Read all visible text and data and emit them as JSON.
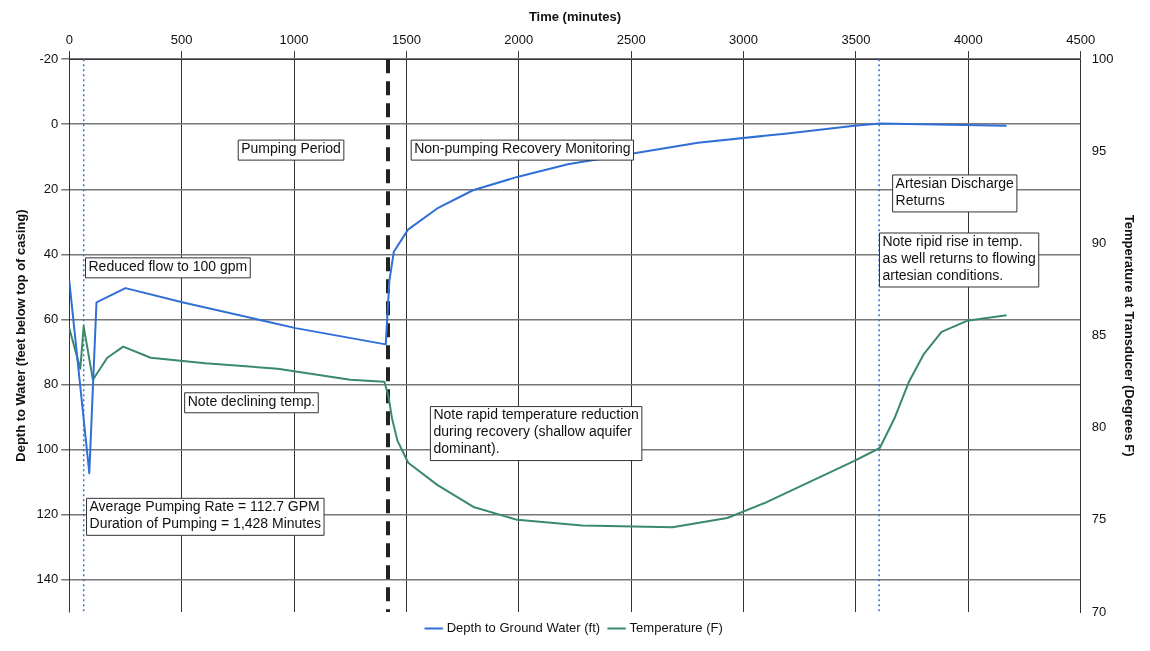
{
  "chart_data": {
    "type": "line",
    "xlabel": "Time (minutes)",
    "ylabel": "Depth to Water (feet below top of casing)",
    "y2label": "Temperature at Transducer (Degrees F)",
    "xlim": [
      0,
      4500
    ],
    "xticks": [
      0,
      500,
      1000,
      1500,
      2000,
      2500,
      3000,
      3500,
      4000,
      4500
    ],
    "ylim": [
      150,
      -20
    ],
    "yticks": [
      -20,
      0,
      20,
      40,
      60,
      80,
      100,
      120,
      140
    ],
    "y2lim": [
      70,
      100
    ],
    "y2ticks": [
      70,
      75,
      80,
      85,
      90,
      95,
      100
    ],
    "grid": true,
    "legend": "bottom",
    "marker": "none",
    "line_style": "solid",
    "series": [
      {
        "name": "Depth to Ground Water (ft)",
        "color": "#2f6fd6",
        "x": [
          0,
          89,
          121,
          250,
          507,
          1007,
          1408,
          1424,
          1444,
          1507,
          1637,
          1796,
          1993,
          2218,
          2797,
          3185,
          3493,
          3606,
          4170
        ],
        "values": [
          48.2,
          107.3,
          54.8,
          50.4,
          54.8,
          62.7,
          67.7,
          48.2,
          39.2,
          32.4,
          25.9,
          20.3,
          16.2,
          12.3,
          5.7,
          2.9,
          0.5,
          -0.2,
          0.5
        ]
      },
      {
        "name": "Temperature (F)",
        "color": "#3a8a6a",
        "axis": "y2",
        "x": [
          0,
          49,
          64,
          105,
          169,
          240,
          362,
          605,
          927,
          1250,
          1402,
          1420,
          1436,
          1460,
          1508,
          1637,
          1798,
          1993,
          2282,
          2684,
          2927,
          3091,
          3493,
          3606,
          3671,
          3736,
          3802,
          3881,
          3994,
          4170
        ],
        "values": [
          85.4,
          83.2,
          85.5,
          82.6,
          83.8,
          84.4,
          83.8,
          83.5,
          83.2,
          82.6,
          82.5,
          81.7,
          80.5,
          79.3,
          78.1,
          76.9,
          75.7,
          75.0,
          74.7,
          74.6,
          75.1,
          75.9,
          78.2,
          78.9,
          80.5,
          82.5,
          84.0,
          85.2,
          85.8,
          86.1
        ]
      }
    ],
    "ref_lines": [
      {
        "axis": "x",
        "value": 1418,
        "color": "#222222",
        "line_style": "dashed"
      },
      {
        "axis": "x",
        "value": 64,
        "color": "#2f6fd6",
        "line_style": "dotted"
      },
      {
        "axis": "x",
        "value": 3603,
        "color": "#2f6fd6",
        "line_style": "dotted"
      }
    ],
    "annotations": [
      "Pumping Period",
      "Non-pumping Recovery Monitoring",
      "Artesian Discharge\nReturns",
      "Note ripid rise in temp.\nas well returns to flowing\nartesian conditions.",
      "Reduced flow to 100 gpm",
      "Note declining temp.",
      "Note rapid temperature reduction\nduring recovery (shallow aquifer\ndominant).",
      "Average Pumping Rate = 112.7 GPM\nDuration of Pumping = 1,428 Minutes"
    ]
  }
}
